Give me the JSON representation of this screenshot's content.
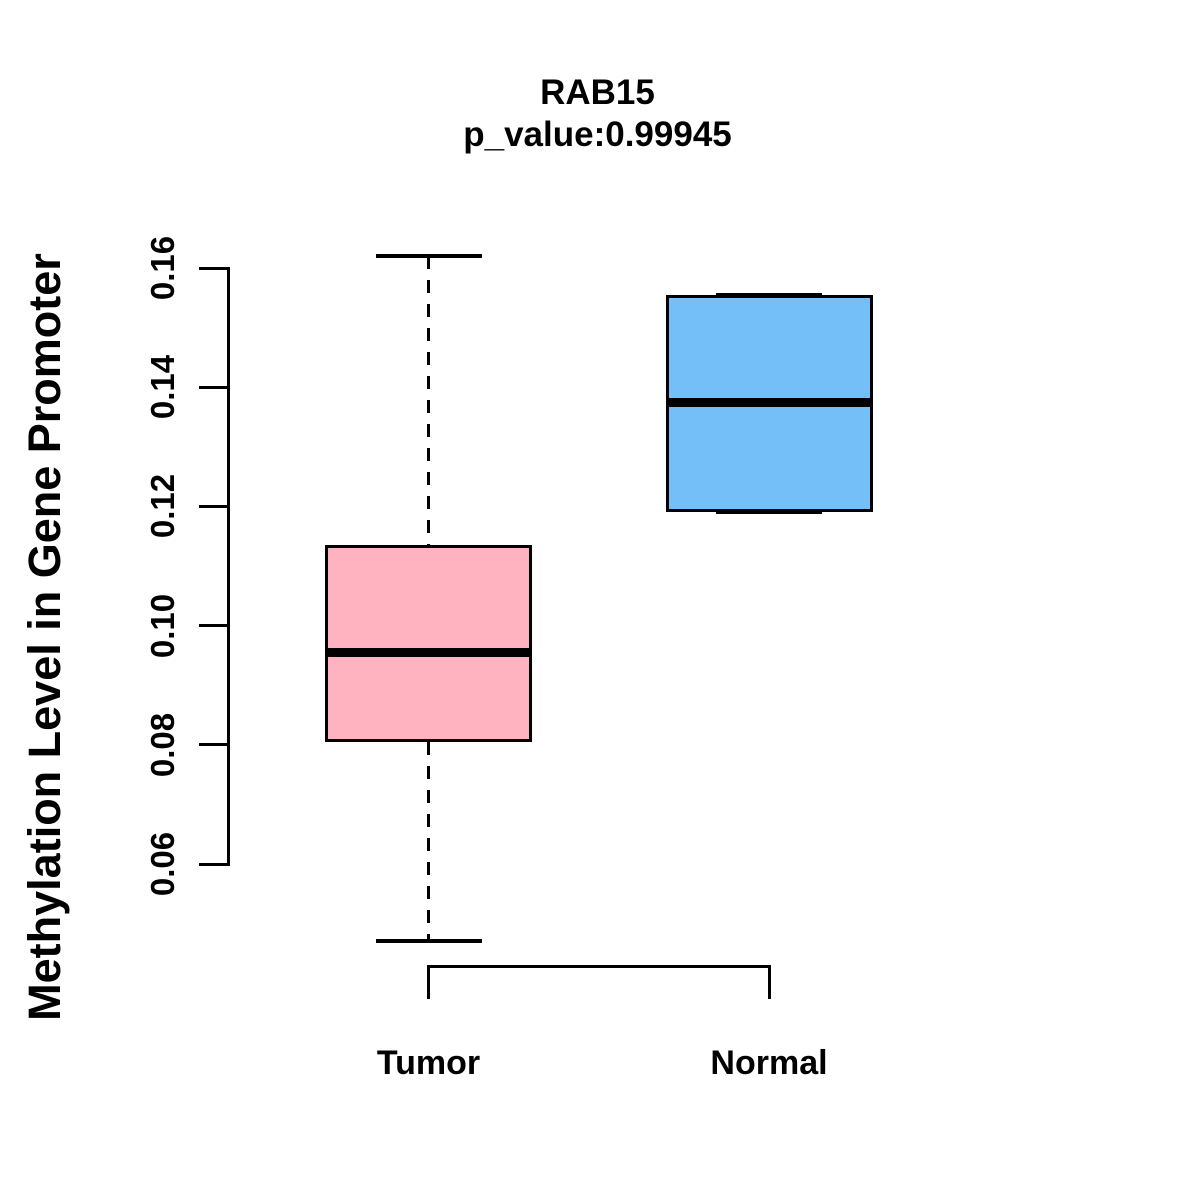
{
  "figure": {
    "title": "RAB15",
    "subtitle": "p_value:0.99945",
    "ylabel": "Methylation Level in Gene Promoter"
  },
  "colors": {
    "tumor_fill": "#FFB3C1",
    "normal_fill": "#74BFF7",
    "line": "#000000",
    "background": "#FFFFFF"
  },
  "chart_data": {
    "type": "boxplot",
    "title": "RAB15",
    "subtitle": "p_value:0.99945",
    "ylabel": "Methylation Level in Gene Promoter",
    "xlabel": "",
    "ylim": [
      0.047,
      0.163
    ],
    "ytick_labels": [
      "0.06",
      "0.08",
      "0.10",
      "0.12",
      "0.14",
      "0.16"
    ],
    "grid": false,
    "legend": "none",
    "categories": [
      "Tumor",
      "Normal"
    ],
    "groups": [
      {
        "label": "Tumor",
        "color": "#FFB3C1",
        "whisker_low": 0.047,
        "q1": 0.0805,
        "median": 0.0955,
        "q3": 0.1135,
        "whisker_high": 0.162
      },
      {
        "label": "Normal",
        "color": "#74BFF7",
        "whisker_low": 0.119,
        "q1": 0.119,
        "median": 0.1375,
        "q3": 0.1555,
        "whisker_high": 0.1555
      }
    ]
  }
}
